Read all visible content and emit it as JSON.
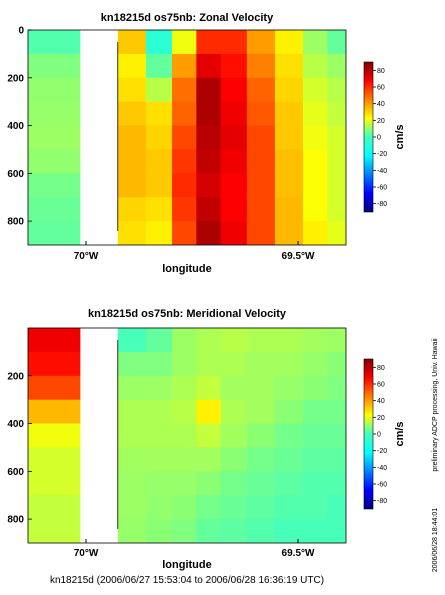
{
  "chart_data": [
    {
      "type": "heatmap",
      "title": "kn18215d os75nb: Zonal Velocity",
      "xlabel": "longitude",
      "ylabel": "",
      "x_ticks": [
        "70°W",
        "69.5°W"
      ],
      "y_ticks": [
        0,
        200,
        400,
        600,
        800
      ],
      "xlim": [
        -70.2,
        -69.35
      ],
      "ylim": [
        900,
        0
      ],
      "colorbar": {
        "label": "cm/s",
        "ticks": [
          80,
          60,
          40,
          20,
          0,
          -20,
          -40,
          -60,
          -80
        ],
        "range": [
          -90,
          90
        ]
      },
      "columns": [
        {
          "lon": -70.16,
          "values": [
            -8,
            0,
            3,
            4,
            5,
            3,
            -2,
            -4,
            -5
          ]
        },
        {
          "lon": -69.92,
          "values": [
            32,
            25,
            28,
            32,
            35,
            35,
            35,
            30,
            28
          ]
        },
        {
          "lon": -69.85,
          "values": [
            -15,
            -5,
            10,
            28,
            30,
            32,
            32,
            28,
            25
          ]
        },
        {
          "lon": -69.78,
          "values": [
            20,
            40,
            48,
            50,
            55,
            58,
            60,
            58,
            55
          ]
        },
        {
          "lon": -69.72,
          "values": [
            60,
            72,
            82,
            82,
            80,
            78,
            75,
            78,
            82
          ]
        },
        {
          "lon": -69.65,
          "values": [
            60,
            65,
            68,
            70,
            72,
            70,
            68,
            68,
            70
          ]
        },
        {
          "lon": -69.58,
          "values": [
            40,
            45,
            50,
            52,
            55,
            55,
            55,
            55,
            55
          ]
        },
        {
          "lon": -69.5,
          "values": [
            25,
            28,
            30,
            32,
            32,
            34,
            34,
            35,
            35
          ]
        },
        {
          "lon": -69.43,
          "values": [
            5,
            10,
            15,
            18,
            20,
            22,
            22,
            22,
            25
          ]
        },
        {
          "lon": -69.37,
          "values": [
            -5,
            5,
            10,
            12,
            15,
            15,
            15,
            15,
            18
          ]
        }
      ]
    },
    {
      "type": "heatmap",
      "title": "kn18215d os75nb: Meridional Velocity",
      "xlabel": "longitude",
      "ylabel": "",
      "x_ticks": [
        "70°W",
        "69.5°W"
      ],
      "y_ticks": [
        200,
        400,
        600,
        800
      ],
      "xlim": [
        -70.2,
        -69.35
      ],
      "ylim": [
        900,
        0
      ],
      "colorbar": {
        "label": "cm/s",
        "ticks": [
          80,
          60,
          40,
          20,
          0,
          -20,
          -40,
          -60,
          -80
        ],
        "range": [
          -90,
          90
        ]
      },
      "columns": [
        {
          "lon": -70.16,
          "values": [
            70,
            65,
            55,
            35,
            20,
            15,
            15,
            12,
            12
          ]
        },
        {
          "lon": -69.92,
          "values": [
            -10,
            0,
            5,
            8,
            8,
            6,
            5,
            5,
            4
          ]
        },
        {
          "lon": -69.85,
          "values": [
            -5,
            0,
            5,
            8,
            8,
            6,
            4,
            3,
            2
          ]
        },
        {
          "lon": -69.78,
          "values": [
            5,
            5,
            8,
            10,
            8,
            6,
            4,
            2,
            0
          ]
        },
        {
          "lon": -69.72,
          "values": [
            8,
            8,
            12,
            25,
            12,
            6,
            2,
            -2,
            -5
          ]
        },
        {
          "lon": -69.65,
          "values": [
            10,
            8,
            6,
            8,
            6,
            2,
            -2,
            -4,
            -6
          ]
        },
        {
          "lon": -69.58,
          "values": [
            8,
            6,
            6,
            6,
            2,
            -2,
            -4,
            -6,
            -8
          ]
        },
        {
          "lon": -69.5,
          "values": [
            8,
            6,
            4,
            2,
            -2,
            -4,
            -6,
            -8,
            -10
          ]
        },
        {
          "lon": -69.43,
          "values": [
            6,
            4,
            2,
            -2,
            -4,
            -6,
            -8,
            -8,
            -10
          ]
        },
        {
          "lon": -69.37,
          "values": [
            5,
            2,
            0,
            -2,
            -4,
            -6,
            -8,
            -10,
            -10
          ]
        }
      ]
    }
  ],
  "footer": {
    "time_range": "kn18215d (2006/06/27 15:53:04 to 2006/06/28 16:36:19 UTC)",
    "credit": "preliminary ADCP processing,   Univ. Hawaii",
    "timestamp": "2006/06/28 18:44:01"
  }
}
